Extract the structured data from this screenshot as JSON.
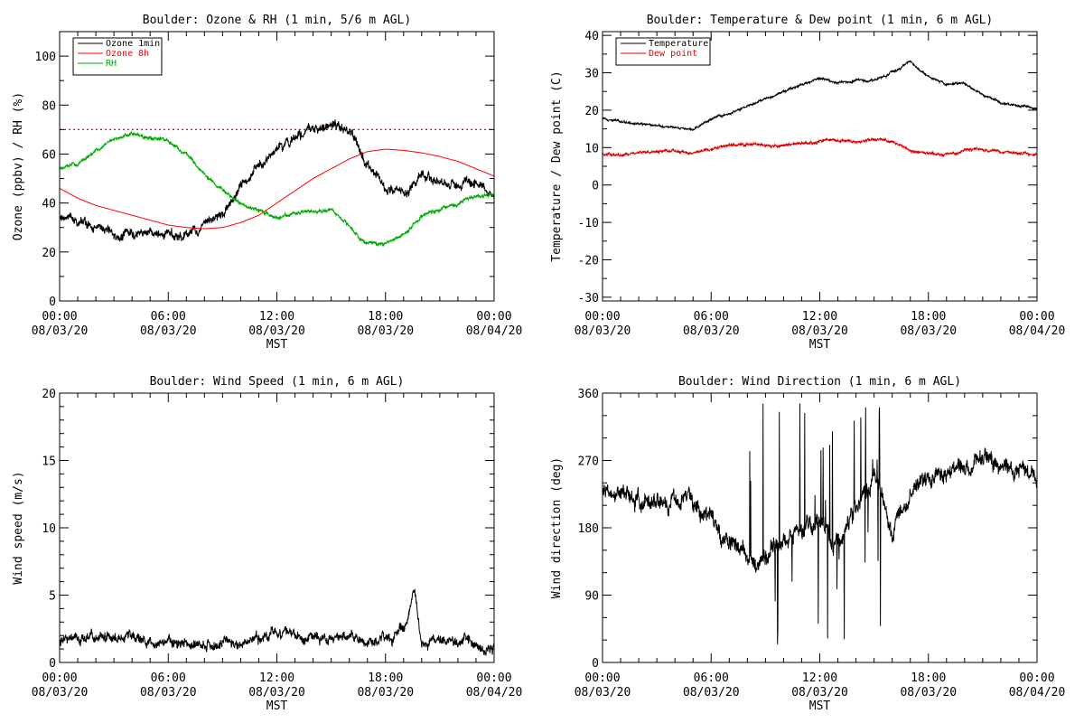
{
  "charts": [
    {
      "title": "Boulder: Ozone & RH (1 min, 5/6 m AGL)",
      "ylabel": "Ozone (ppbv) / RH (%)",
      "xlabel": "MST",
      "yticks": [
        "0",
        "20",
        "40",
        "60",
        "80",
        "100"
      ]
    },
    {
      "title": "Boulder: Temperature & Dew point (1 min, 6 m AGL)",
      "ylabel": "Temperature / Dew point (C)",
      "xlabel": "MST",
      "yticks": [
        "-30",
        "-20",
        "-10",
        "0",
        "10",
        "20",
        "30",
        "40"
      ]
    },
    {
      "title": "Boulder: Wind Speed (1 min, 6 m AGL)",
      "ylabel": "Wind speed (m/s)",
      "xlabel": "MST",
      "yticks": [
        "0",
        "5",
        "10",
        "15",
        "20"
      ]
    },
    {
      "title": "Boulder: Wind Direction (1 min, 6 m AGL)",
      "ylabel": "Wind direction (deg)",
      "xlabel": "MST",
      "yticks": [
        "0",
        "90",
        "180",
        "270",
        "360"
      ]
    }
  ],
  "xticks": [
    {
      "time": "00:00",
      "date": "08/03/20"
    },
    {
      "time": "06:00",
      "date": "08/03/20"
    },
    {
      "time": "12:00",
      "date": "08/03/20"
    },
    {
      "time": "18:00",
      "date": "08/03/20"
    },
    {
      "time": "00:00",
      "date": "08/04/20"
    }
  ],
  "chart_data": [
    {
      "type": "line",
      "title": "Boulder: Ozone & RH (1 min, 5/6 m AGL)",
      "xlabel": "MST",
      "ylabel": "Ozone (ppbv) / RH (%)",
      "xlim": [
        0,
        24
      ],
      "ylim": [
        0,
        110
      ],
      "x_unit": "hours since 08/03/20 00:00 MST",
      "grid": false,
      "legend": "top-left",
      "reference_lines": [
        {
          "y": 70,
          "style": "dotted",
          "color": "#ff0000"
        }
      ],
      "series": [
        {
          "name": "Ozone 1min",
          "color": "#000000",
          "noise": 2.5,
          "x": [
            0,
            1,
            2,
            3,
            4,
            5,
            6,
            7,
            8,
            9,
            10,
            11,
            12,
            13,
            14,
            15,
            16,
            17,
            18,
            19,
            20,
            21,
            22,
            23,
            24
          ],
          "y": [
            35,
            33,
            30,
            27,
            27,
            28,
            27,
            28,
            31,
            36,
            46,
            56,
            62,
            67,
            70,
            72,
            70,
            54,
            47,
            45,
            52,
            49,
            47,
            48,
            42
          ]
        },
        {
          "name": "Ozone 8h",
          "color": "#ff0000",
          "noise": 0,
          "x": [
            0,
            1,
            2,
            3,
            4,
            5,
            6,
            7,
            8,
            9,
            10,
            11,
            12,
            13,
            14,
            15,
            16,
            17,
            18,
            19,
            20,
            21,
            22,
            23,
            24
          ],
          "y": [
            46,
            42,
            39,
            37,
            35,
            33,
            31,
            30,
            29.5,
            30,
            32,
            35,
            40,
            45,
            50,
            54,
            58,
            61,
            62,
            61.5,
            60.5,
            59,
            57,
            54,
            51
          ]
        },
        {
          "name": "RH",
          "color": "#00aa00",
          "noise": 1,
          "x": [
            0,
            1,
            2,
            3,
            4,
            5,
            6,
            7,
            8,
            9,
            10,
            11,
            12,
            13,
            14,
            15,
            16,
            17,
            18,
            19,
            20,
            21,
            22,
            23,
            24
          ],
          "y": [
            54,
            56,
            61,
            66,
            68,
            67,
            65,
            60,
            52,
            45,
            40,
            37,
            34,
            36,
            37,
            37,
            31,
            23,
            24,
            27,
            35,
            37,
            40,
            43,
            43
          ]
        }
      ]
    },
    {
      "type": "line",
      "title": "Boulder: Temperature & Dew point (1 min, 6 m AGL)",
      "xlabel": "MST",
      "ylabel": "Temperature / Dew point (C)",
      "xlim": [
        0,
        24
      ],
      "ylim": [
        -31,
        41
      ],
      "x_unit": "hours since 08/03/20 00:00 MST",
      "grid": false,
      "legend": "top-left",
      "series": [
        {
          "name": "Temperature",
          "color": "#000000",
          "noise": 0.4,
          "x": [
            0,
            1,
            2,
            3,
            4,
            5,
            6,
            7,
            8,
            9,
            10,
            11,
            12,
            13,
            14,
            15,
            16,
            17,
            18,
            19,
            20,
            21,
            22,
            23,
            24
          ],
          "y": [
            18,
            17,
            16.5,
            16,
            15.5,
            15,
            17.5,
            19,
            21,
            23,
            25,
            27,
            28.5,
            27.5,
            28,
            28,
            30,
            33,
            29,
            27,
            27,
            24,
            22,
            21,
            20.5
          ]
        },
        {
          "name": "Dew point",
          "color": "#dd0000",
          "noise": 0.5,
          "x": [
            0,
            1,
            2,
            3,
            4,
            5,
            6,
            7,
            8,
            9,
            10,
            11,
            12,
            13,
            14,
            15,
            16,
            17,
            18,
            19,
            20,
            21,
            22,
            23,
            24
          ],
          "y": [
            8.5,
            8,
            8.5,
            9,
            9,
            8.5,
            9.5,
            10.5,
            11,
            10.5,
            10.5,
            11,
            11.5,
            12,
            11.5,
            12,
            11.5,
            9,
            8.5,
            8,
            9.5,
            9.5,
            9,
            8.5,
            8
          ]
        }
      ]
    },
    {
      "type": "line",
      "title": "Boulder: Wind Speed (1 min, 6 m AGL)",
      "xlabel": "MST",
      "ylabel": "Wind speed (m/s)",
      "xlim": [
        0,
        24
      ],
      "ylim": [
        0,
        20
      ],
      "x_unit": "hours since 08/03/20 00:00 MST",
      "grid": false,
      "series": [
        {
          "name": "",
          "color": "#000000",
          "noise": 0.5,
          "x": [
            0,
            1,
            2,
            3,
            4,
            5,
            6,
            7,
            8,
            9,
            10,
            11,
            12,
            13,
            14,
            15,
            16,
            17,
            18,
            19,
            19.6,
            20,
            21,
            22,
            23,
            24
          ],
          "y": [
            1.6,
            1.7,
            1.8,
            1.7,
            1.8,
            1.6,
            1.5,
            1.3,
            1.2,
            1.3,
            1.5,
            1.8,
            2.2,
            2,
            1.8,
            1.7,
            2,
            1.4,
            1.8,
            2.5,
            5.5,
            1.6,
            1.8,
            1.6,
            1.4,
            1.2
          ]
        }
      ]
    },
    {
      "type": "line",
      "title": "Boulder: Wind Direction (1 min, 6 m AGL)",
      "xlabel": "MST",
      "ylabel": "Wind direction (deg)",
      "xlim": [
        0,
        24
      ],
      "ylim": [
        0,
        360
      ],
      "x_unit": "hours since 08/03/20 00:00 MST",
      "grid": false,
      "series": [
        {
          "name": "",
          "color": "#000000",
          "noise": 15,
          "x": [
            0,
            1,
            2,
            3,
            4,
            5,
            6,
            7,
            8,
            9,
            10,
            11,
            12,
            13,
            14,
            15,
            16,
            17,
            18,
            19,
            20,
            21,
            22,
            23,
            24
          ],
          "y": [
            230,
            225,
            215,
            215,
            215,
            212,
            195,
            165,
            130,
            140,
            160,
            180,
            180,
            160,
            200,
            250,
            180,
            220,
            248,
            255,
            255,
            270,
            265,
            255,
            245
          ]
        }
      ]
    }
  ]
}
